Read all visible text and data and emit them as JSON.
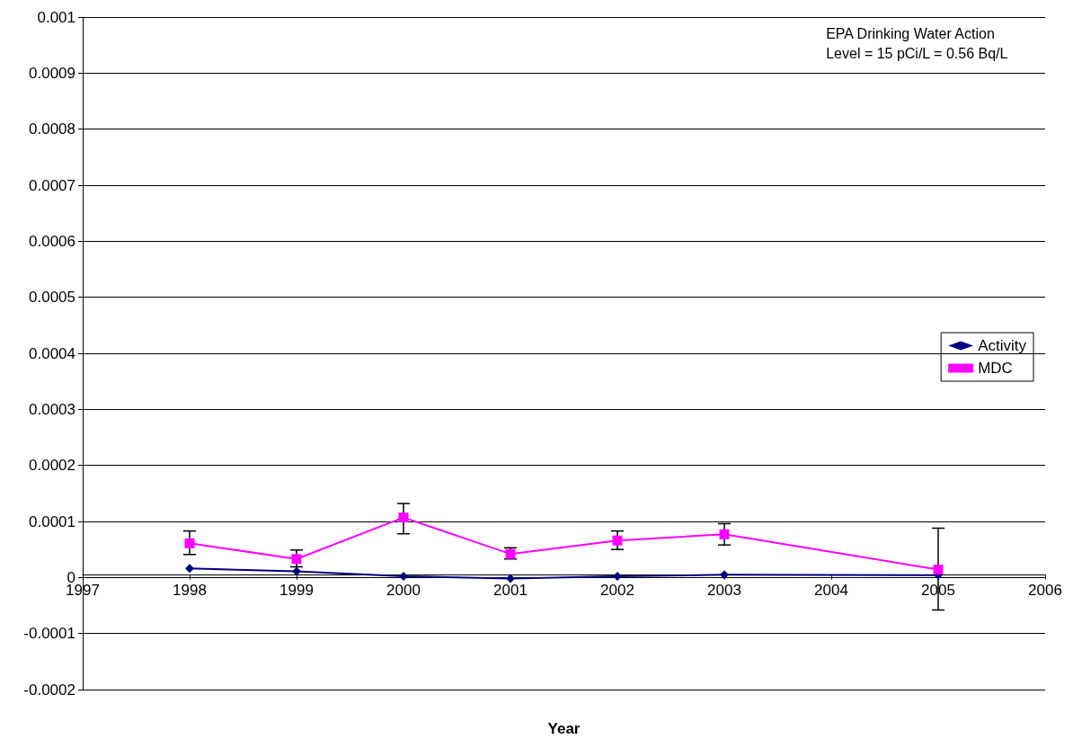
{
  "chart_data": {
    "type": "line",
    "xlabel": "Year",
    "annotations": [
      "EPA Drinking Water Action\nLevel = 15 pCi/L = 0.56 Bq/L"
    ],
    "x": [
      1998,
      1999,
      2000,
      2001,
      2002,
      2003,
      2005
    ],
    "series": [
      {
        "name": "Activity",
        "color": "#000080",
        "marker": "diamond",
        "values": [
          1.6e-05,
          1.1e-05,
          2e-06,
          -2e-06,
          2e-06,
          5e-06,
          4e-06
        ]
      },
      {
        "name": "MDC",
        "color": "#ff00ff",
        "marker": "square",
        "values": [
          6.1e-05,
          3.3e-05,
          0.000107,
          4.2e-05,
          6.6e-05,
          7.7e-05,
          1.4e-05
        ],
        "errors": [
          [
            4.1e-05,
            8.3e-05
          ],
          [
            1.9e-05,
            4.9e-05
          ],
          [
            7.8e-05,
            0.000132
          ],
          [
            3.3e-05,
            5.3e-05
          ],
          [
            5e-05,
            8.3e-05
          ],
          [
            5.8e-05,
            9.6e-05
          ],
          [
            -5.8e-05,
            8.8e-05
          ]
        ]
      }
    ],
    "xlim": [
      1997,
      2006
    ],
    "xticks": [
      1997,
      1998,
      1999,
      2000,
      2001,
      2002,
      2003,
      2004,
      2005,
      2006
    ],
    "ylim": [
      -0.0002,
      0.001
    ],
    "yticks": [
      -0.0002,
      -0.0001,
      0,
      0.0001,
      0.0002,
      0.0003,
      0.0004,
      0.0005,
      0.0006,
      0.0007,
      0.0008,
      0.0009,
      0.001
    ],
    "grid": "y",
    "legend": "right"
  }
}
